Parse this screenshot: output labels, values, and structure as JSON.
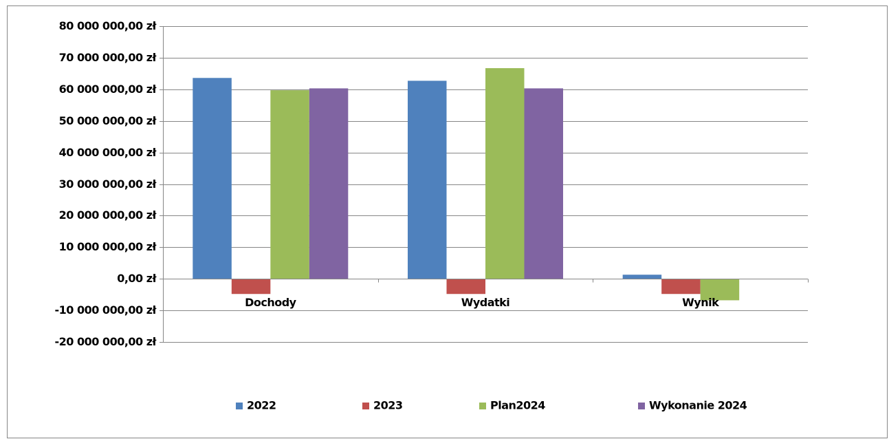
{
  "chart_data": {
    "type": "bar",
    "categories": [
      "Dochody",
      "Wydatki",
      "Wynik"
    ],
    "series": [
      {
        "name": "2022",
        "color": "#4f81bd",
        "values": [
          63600000,
          62700000,
          1300000
        ]
      },
      {
        "name": "2023",
        "color": "#c0504d",
        "values": [
          -4800000,
          -4800000,
          -4800000
        ]
      },
      {
        "name": "Plan2024",
        "color": "#9bbb59",
        "values": [
          59700000,
          66700000,
          -6800000
        ]
      },
      {
        "name": "Wykonanie 2024",
        "color": "#8064a2",
        "values": [
          60300000,
          60300000,
          0
        ]
      }
    ],
    "ylim": [
      -20000000,
      80000000
    ],
    "yticks": [
      {
        "value": -20000000,
        "label": "-20 000 000,00 zł"
      },
      {
        "value": -10000000,
        "label": "-10 000 000,00 zł"
      },
      {
        "value": 0,
        "label": "0,00 zł"
      },
      {
        "value": 10000000,
        "label": "10 000 000,00 zł"
      },
      {
        "value": 20000000,
        "label": "20 000 000,00 zł"
      },
      {
        "value": 30000000,
        "label": "30 000 000,00 zł"
      },
      {
        "value": 40000000,
        "label": "40 000 000,00 zł"
      },
      {
        "value": 50000000,
        "label": "50 000 000,00 zł"
      },
      {
        "value": 60000000,
        "label": "60 000 000,00 zł"
      },
      {
        "value": 70000000,
        "label": "70 000 000,00 zł"
      },
      {
        "value": 80000000,
        "label": "80 000 000,00 zł"
      }
    ],
    "grid": true,
    "legend": "bottom"
  }
}
